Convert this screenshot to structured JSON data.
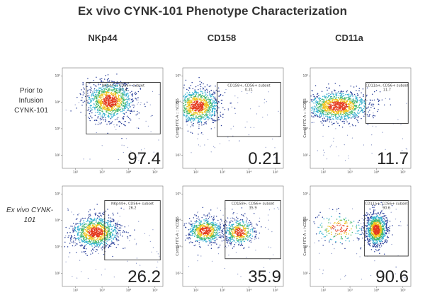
{
  "title": "Ex vivo CYNK-101 Phenotype Characterization",
  "columns": [
    "NKp44",
    "CD158",
    "CD11a"
  ],
  "rows": [
    {
      "label_lines": [
        "Prior to",
        "Infusion",
        "CYNK-101"
      ],
      "italic": false
    },
    {
      "label_lines": [
        "Ex vivo CYNK-",
        "101"
      ],
      "italic": true
    }
  ],
  "y_axis_label": "Comp-FITC-A :: hCD56",
  "colors": {
    "dense": "#e53a1e",
    "mid": "#f1c21b",
    "green": "#45b86a",
    "cyan": "#31b0d0",
    "sparse": "#2a3f9a",
    "gate": "#333333"
  },
  "chart_data": [
    {
      "type": "scatter",
      "panel": "row1-NKp44",
      "row": 0,
      "col": 0,
      "marker": "NKp44",
      "gate_label": "NKp44+, CD56+ subset",
      "gate_value": "97.4",
      "percent": "97.4",
      "x_ticks": [
        "10²",
        "10³",
        "10⁴",
        "10⁵"
      ],
      "y_ticks": [
        "10⁵",
        "10⁴",
        "10³",
        "10²"
      ],
      "axis_range_log10": [
        1.5,
        5.3
      ],
      "gate_log10": {
        "x": [
          2.4,
          5.2
        ],
        "y": [
          2.8,
          4.75
        ]
      },
      "populations": [
        {
          "cx": 3.3,
          "cy": 4.05,
          "sx": 0.45,
          "sy": 0.36,
          "n": 1100
        }
      ]
    },
    {
      "type": "scatter",
      "panel": "row1-CD158",
      "row": 0,
      "col": 1,
      "marker": "CD158",
      "gate_label": "CD158+, CD56+ subset",
      "gate_value": "0.21",
      "percent": "0.21",
      "x_ticks": [
        "10²",
        "10³",
        "10⁴",
        "10⁵"
      ],
      "y_ticks": [
        "10⁵",
        "10⁴",
        "10³",
        "10²"
      ],
      "axis_range_log10": [
        1.5,
        5.3
      ],
      "gate_log10": {
        "x": [
          2.8,
          5.2
        ],
        "y": [
          2.7,
          4.75
        ]
      },
      "populations": [
        {
          "cx": 2.05,
          "cy": 3.85,
          "sx": 0.42,
          "sy": 0.34,
          "n": 1000
        }
      ]
    },
    {
      "type": "scatter",
      "panel": "row1-CD11a",
      "row": 0,
      "col": 2,
      "marker": "CD11a",
      "gate_label": "CD11a+, CD56+ subset",
      "gate_value": "11.7",
      "percent": "11.7",
      "x_ticks": [
        "10²",
        "10³",
        "10⁴",
        "10⁵"
      ],
      "y_ticks": [
        "10⁵",
        "10⁴",
        "10³",
        "10²"
      ],
      "axis_range_log10": [
        1.5,
        5.3
      ],
      "gate_log10": {
        "x": [
          3.6,
          5.2
        ],
        "y": [
          3.2,
          4.75
        ]
      },
      "populations": [
        {
          "cx": 2.55,
          "cy": 3.85,
          "sx": 0.6,
          "sy": 0.28,
          "n": 1200
        }
      ]
    },
    {
      "type": "scatter",
      "panel": "row2-NKp44",
      "row": 1,
      "col": 0,
      "marker": "NKp44",
      "gate_label": "NKp44+, CD56+ subset",
      "gate_value": "26.2",
      "percent": "26.2",
      "x_ticks": [
        "10²",
        "10³",
        "10⁴",
        "10⁵"
      ],
      "y_ticks": [
        "10⁵",
        "10⁴",
        "10³",
        "10²"
      ],
      "axis_range_log10": [
        1.5,
        5.3
      ],
      "gate_log10": {
        "x": [
          3.1,
          5.2
        ],
        "y": [
          2.5,
          4.75
        ]
      },
      "populations": [
        {
          "cx": 2.75,
          "cy": 3.55,
          "sx": 0.45,
          "sy": 0.3,
          "n": 1100
        }
      ]
    },
    {
      "type": "scatter",
      "panel": "row2-CD158",
      "row": 1,
      "col": 1,
      "marker": "CD158",
      "gate_label": "CD158+, CD56+ subset",
      "gate_value": "35.9",
      "percent": "35.9",
      "x_ticks": [
        "10²",
        "10³",
        "10⁴",
        "10⁵"
      ],
      "y_ticks": [
        "10⁵",
        "10⁴",
        "10³",
        "10²"
      ],
      "axis_range_log10": [
        1.5,
        5.3
      ],
      "gate_log10": {
        "x": [
          3.1,
          5.2
        ],
        "y": [
          2.55,
          4.75
        ]
      },
      "populations": [
        {
          "cx": 2.35,
          "cy": 3.6,
          "sx": 0.33,
          "sy": 0.25,
          "n": 650
        },
        {
          "cx": 3.65,
          "cy": 3.55,
          "sx": 0.3,
          "sy": 0.25,
          "n": 450
        }
      ]
    },
    {
      "type": "scatter",
      "panel": "row2-CD11a",
      "row": 1,
      "col": 2,
      "marker": "CD11a",
      "gate_label": "CD11a+, CD56+ subset",
      "gate_value": "90.6",
      "percent": "90.6",
      "x_ticks": [
        "10²",
        "10³",
        "10⁴",
        "10⁵"
      ],
      "y_ticks": [
        "10⁵",
        "10⁴",
        "10³",
        "10²"
      ],
      "axis_range_log10": [
        1.5,
        5.3
      ],
      "gate_log10": {
        "x": [
          3.55,
          5.2
        ],
        "y": [
          2.65,
          4.75
        ]
      },
      "populations": [
        {
          "cx": 4.0,
          "cy": 3.65,
          "sx": 0.2,
          "sy": 0.3,
          "n": 1000
        },
        {
          "cx": 2.6,
          "cy": 3.7,
          "sx": 0.5,
          "sy": 0.3,
          "n": 180
        }
      ]
    }
  ]
}
